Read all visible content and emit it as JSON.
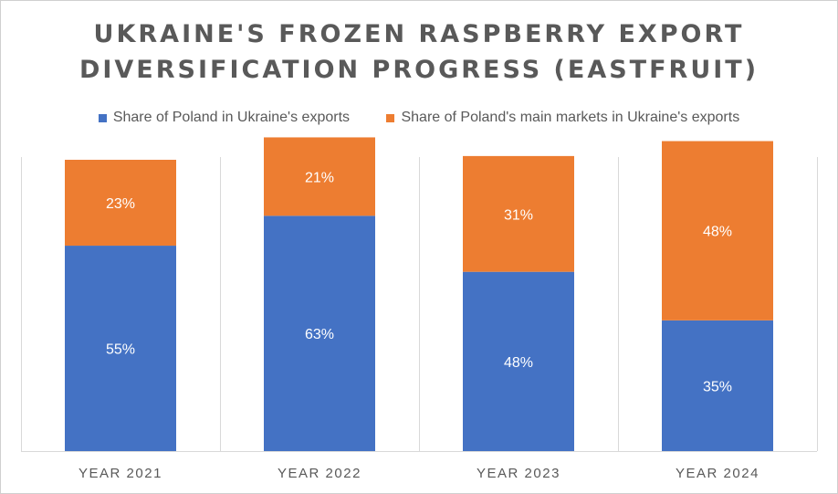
{
  "chart_data": {
    "type": "bar",
    "stacked": true,
    "title": "UKRAINE'S FROZEN RASPBERRY EXPORT DIVERSIFICATION PROGRESS (EASTFRUIT)",
    "title_lines": [
      "UKRAINE'S FROZEN RASPBERRY EXPORT",
      "DIVERSIFICATION PROGRESS (EASTFRUIT)"
    ],
    "categories": [
      "YEAR 2021",
      "YEAR 2022",
      "YEAR 2023",
      "YEAR 2024"
    ],
    "series": [
      {
        "name": "Share of Poland in Ukraine's exports",
        "values": [
          55,
          63,
          48,
          35
        ],
        "labels": [
          "55%",
          "63%",
          "48%",
          "35%"
        ],
        "color": "#4472C4"
      },
      {
        "name": "Share of Poland's main markets in Ukraine's exports",
        "values": [
          23,
          21,
          31,
          48
        ],
        "labels": [
          "23%",
          "21%",
          "31%",
          "48%"
        ],
        "color": "#ED7D31"
      }
    ],
    "ylim": [
      0,
      100
    ],
    "yaxis_visible": false,
    "grid": "vertical separators between categories",
    "legend_position": "top",
    "data_label_color": "#ffffff"
  }
}
